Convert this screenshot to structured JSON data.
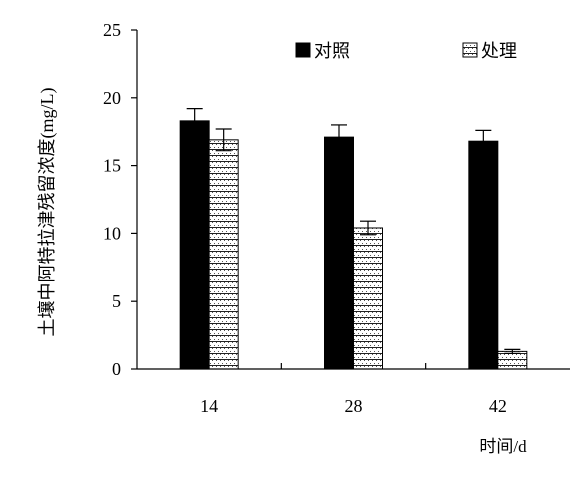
{
  "chart_data": {
    "type": "bar",
    "title": "",
    "categories": [
      "14",
      "28",
      "42"
    ],
    "series": [
      {
        "name": "对照",
        "values": [
          18.3,
          17.1,
          16.8
        ],
        "errors": [
          0.9,
          0.9,
          0.8
        ],
        "color": "#000000",
        "pattern": "solid"
      },
      {
        "name": "处理",
        "values": [
          16.9,
          10.4,
          1.3
        ],
        "errors": [
          0.8,
          0.5,
          0.15
        ],
        "color": "#ffffff",
        "pattern": "dotted-horizontal-stripes"
      }
    ],
    "ylabel": "土壤中阿特拉津残留浓度(mg/L)",
    "xlabel": "时间/d",
    "ylim": [
      0,
      25
    ],
    "yticks": [
      "0",
      "5",
      "10",
      "15",
      "20",
      "25"
    ],
    "legend_position": "top",
    "grid": false
  }
}
